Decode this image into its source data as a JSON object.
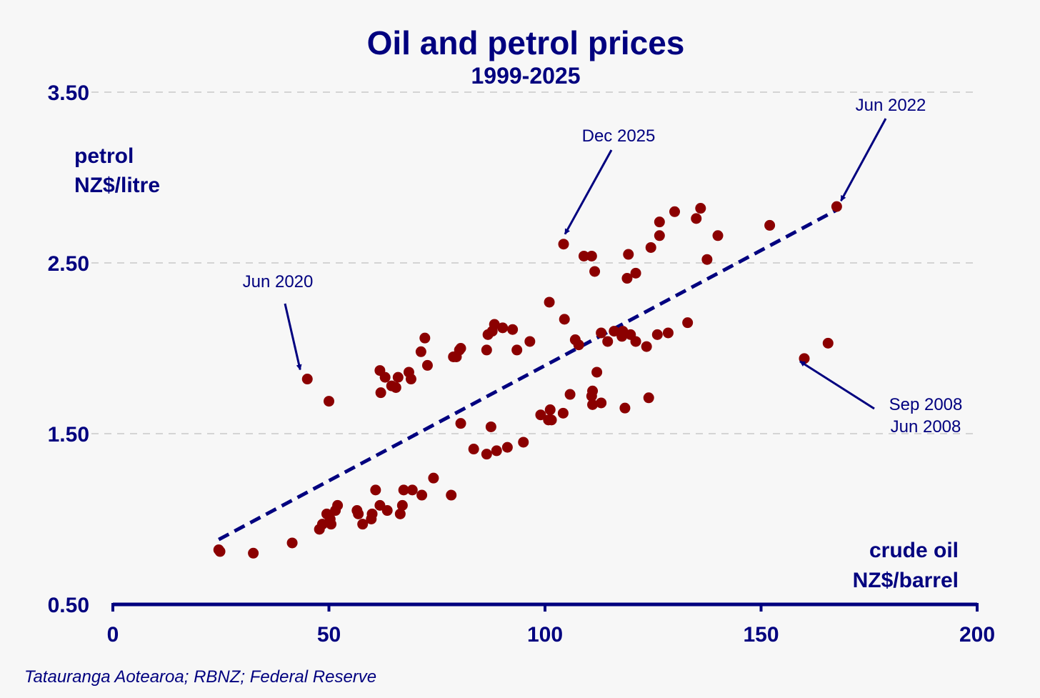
{
  "chart_data": {
    "type": "scatter",
    "title": "Oil and petrol prices",
    "subtitle": "1999-2025",
    "ylabel": [
      "petrol",
      "NZ$/litre"
    ],
    "xlabel": [
      "crude oil",
      "NZ$/barrel"
    ],
    "xlim": [
      0,
      200
    ],
    "ylim": [
      0.5,
      3.5
    ],
    "x_ticks": [
      0,
      50,
      100,
      150,
      200
    ],
    "x_tick_labels": [
      "0",
      "50",
      "100",
      "150",
      "200"
    ],
    "y_ticks": [
      0.5,
      1.5,
      2.5,
      3.5
    ],
    "y_tick_labels": [
      "0.50",
      "1.50",
      "2.50",
      "3.50"
    ],
    "grid": "horizontal dashed",
    "colors": {
      "points": "#8b0000",
      "axis": "#00007f",
      "trend": "#00007f",
      "grid": "#d4d4d4"
    },
    "points": [
      [
        24.5,
        0.82
      ],
      [
        24.8,
        0.81
      ],
      [
        32.5,
        0.8
      ],
      [
        41.5,
        0.86
      ],
      [
        47.8,
        0.94
      ],
      [
        48.5,
        0.97
      ],
      [
        49.5,
        1.03
      ],
      [
        50.3,
        1.0
      ],
      [
        50.5,
        0.97
      ],
      [
        51.5,
        1.05
      ],
      [
        52.0,
        1.08
      ],
      [
        56.5,
        1.05
      ],
      [
        56.8,
        1.03
      ],
      [
        57.8,
        0.97
      ],
      [
        59.8,
        1.0
      ],
      [
        60.0,
        1.03
      ],
      [
        60.8,
        1.17
      ],
      [
        61.8,
        1.08
      ],
      [
        63.5,
        1.05
      ],
      [
        66.5,
        1.03
      ],
      [
        67.0,
        1.08
      ],
      [
        67.3,
        1.17
      ],
      [
        69.3,
        1.17
      ],
      [
        71.5,
        1.14
      ],
      [
        74.2,
        1.24
      ],
      [
        78.3,
        1.14
      ],
      [
        80.5,
        1.56
      ],
      [
        83.5,
        1.41
      ],
      [
        86.5,
        1.38
      ],
      [
        87.5,
        1.54
      ],
      [
        88.8,
        1.4
      ],
      [
        91.3,
        1.42
      ],
      [
        95.0,
        1.45
      ],
      [
        99.0,
        1.61
      ],
      [
        100.8,
        1.58
      ],
      [
        101.2,
        1.64
      ],
      [
        101.5,
        1.58
      ],
      [
        104.2,
        1.62
      ],
      [
        105.8,
        1.73
      ],
      [
        110.8,
        1.72
      ],
      [
        111.0,
        1.75
      ],
      [
        111.0,
        1.67
      ],
      [
        112.0,
        1.86
      ],
      [
        113.0,
        1.68
      ],
      [
        118.5,
        1.65
      ],
      [
        124.0,
        1.71
      ],
      [
        45.0,
        1.82
      ],
      [
        50.0,
        1.69
      ],
      [
        61.8,
        1.87
      ],
      [
        62.0,
        1.74
      ],
      [
        63.0,
        1.83
      ],
      [
        64.5,
        1.78
      ],
      [
        65.5,
        1.77
      ],
      [
        66.0,
        1.83
      ],
      [
        68.5,
        1.86
      ],
      [
        69.0,
        1.82
      ],
      [
        71.3,
        1.98
      ],
      [
        72.2,
        2.06
      ],
      [
        72.8,
        1.9
      ],
      [
        78.8,
        1.95
      ],
      [
        79.5,
        1.95
      ],
      [
        80.2,
        1.99
      ],
      [
        80.5,
        2.0
      ],
      [
        86.5,
        1.99
      ],
      [
        86.8,
        2.08
      ],
      [
        87.8,
        2.1
      ],
      [
        88.3,
        2.14
      ],
      [
        90.2,
        2.12
      ],
      [
        92.5,
        2.11
      ],
      [
        93.5,
        1.99
      ],
      [
        96.5,
        2.04
      ],
      [
        101.0,
        2.27
      ],
      [
        104.5,
        2.17
      ],
      [
        107.0,
        2.05
      ],
      [
        107.8,
        2.02
      ],
      [
        113.0,
        2.09
      ],
      [
        114.5,
        2.04
      ],
      [
        116.0,
        2.1
      ],
      [
        117.8,
        2.07
      ],
      [
        118.0,
        2.1
      ],
      [
        119.8,
        2.08
      ],
      [
        121.0,
        2.04
      ],
      [
        123.5,
        2.01
      ],
      [
        126.0,
        2.08
      ],
      [
        128.5,
        2.09
      ],
      [
        133.0,
        2.15
      ],
      [
        104.3,
        2.61
      ],
      [
        109.0,
        2.54
      ],
      [
        110.8,
        2.54
      ],
      [
        111.5,
        2.45
      ],
      [
        119.0,
        2.41
      ],
      [
        119.3,
        2.55
      ],
      [
        121.0,
        2.44
      ],
      [
        124.5,
        2.59
      ],
      [
        126.5,
        2.66
      ],
      [
        126.5,
        2.74
      ],
      [
        130.0,
        2.8
      ],
      [
        135.0,
        2.76
      ],
      [
        136.0,
        2.82
      ],
      [
        137.5,
        2.52
      ],
      [
        140.0,
        2.66
      ],
      [
        152.0,
        2.72
      ],
      [
        160.0,
        1.94
      ],
      [
        165.5,
        2.03
      ],
      [
        167.5,
        2.83
      ]
    ],
    "trend_line": {
      "x": [
        24.5,
        167.5
      ],
      "y": [
        0.88,
        2.81
      ]
    },
    "annotations": [
      {
        "label": [
          "Jun 2022"
        ],
        "x": 167.5,
        "y": 2.83
      },
      {
        "label": [
          "Dec 2025"
        ],
        "x": 104.3,
        "y": 2.61
      },
      {
        "label": [
          "Jun 2020"
        ],
        "x": 45.0,
        "y": 1.82
      },
      {
        "label": [
          "Sep 2008",
          "Jun 2008"
        ],
        "x": 160.0,
        "y": 1.94
      }
    ],
    "source": "Tatauranga Aotearoa; RBNZ; Federal Reserve"
  }
}
